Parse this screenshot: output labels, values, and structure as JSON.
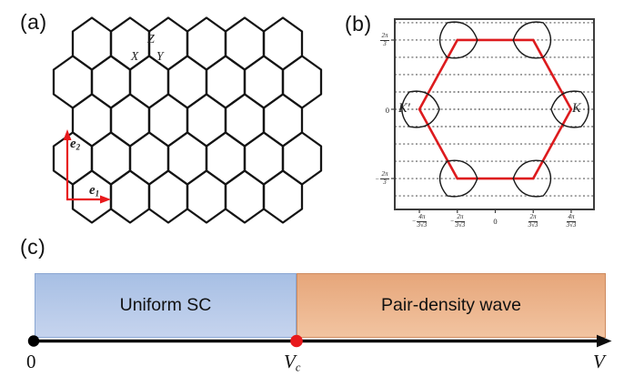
{
  "panels": {
    "a": {
      "label": "(a)",
      "bonds": {
        "x": "X",
        "y": "Y",
        "z": "Z"
      },
      "vectors": {
        "e1": {
          "base": "e",
          "sub": "1"
        },
        "e2": {
          "base": "e",
          "sub": "2"
        }
      }
    },
    "b": {
      "label": "(b)",
      "points": {
        "k": "K",
        "kprime": "K′"
      },
      "yticks": [
        {
          "sign": "",
          "num": "2π",
          "den": "3"
        },
        {
          "zero": "0"
        },
        {
          "sign": "−",
          "num": "2π",
          "den": "3"
        }
      ],
      "xticks": [
        {
          "sign": "−",
          "num": "4π",
          "den": "3√3"
        },
        {
          "sign": "−",
          "num": "2π",
          "den": "3√3"
        },
        {
          "zero": "0"
        },
        {
          "sign": "",
          "num": "2π",
          "den": "3√3"
        },
        {
          "sign": "",
          "num": "4π",
          "den": "3√3"
        }
      ]
    },
    "c": {
      "label": "(c)",
      "regions": [
        {
          "label": "Uniform SC"
        },
        {
          "label": "Pair-density wave"
        }
      ],
      "axis": {
        "origin": "0",
        "critical": {
          "base": "V",
          "sub": "c"
        },
        "end": "V"
      }
    }
  },
  "chart_data": [
    {
      "panel": "a",
      "type": "diagram",
      "subject": "honeycomb lattice with Kitaev bond labels X, Y, Z and lattice vectors e1 (horizontal) and e2 (vertical)",
      "colors": {
        "lattice": "#141414",
        "vectors": "#e8191c"
      }
    },
    {
      "panel": "b",
      "type": "line",
      "subject": "Brillouin zone (red hexagon) with trigonally warped Fermi pockets at K and K′ corners",
      "x_ticks": {
        "labels": [
          "−4π/3√3",
          "−2π/3√3",
          "0",
          "2π/3√3",
          "4π/3√3"
        ],
        "values": [
          -2.4184,
          -1.2092,
          0,
          1.2092,
          2.4184
        ]
      },
      "y_ticks": {
        "labels": [
          "2π/3",
          "0",
          "−2π/3"
        ],
        "values": [
          2.0944,
          0,
          -2.0944
        ]
      },
      "gridlines_y_step": 0.5236,
      "gridlines_count": 11,
      "bz_hexagon_vertices": [
        [
          -1.2092,
          2.0944
        ],
        [
          1.2092,
          2.0944
        ],
        [
          2.4184,
          0
        ],
        [
          1.2092,
          -2.0944
        ],
        [
          -1.2092,
          -2.0944
        ],
        [
          -2.4184,
          0
        ]
      ],
      "pockets": [
        {
          "center": [
            -2.4184,
            0
          ],
          "apex": "east",
          "label": "K′"
        },
        {
          "center": [
            2.4184,
            0
          ],
          "apex": "west",
          "label": "K"
        },
        {
          "center": [
            -1.2092,
            2.0944
          ],
          "apex": "east"
        },
        {
          "center": [
            1.2092,
            2.0944
          ],
          "apex": "west"
        },
        {
          "center": [
            -1.2092,
            -2.0944
          ],
          "apex": "east"
        },
        {
          "center": [
            1.2092,
            -2.0944
          ],
          "apex": "west"
        }
      ],
      "colors": {
        "bz_boundary": "#dd1b1e",
        "pocket": "#1a1a1a",
        "grid": "#2f2f2f",
        "frame": "#3c3c3c"
      }
    },
    {
      "panel": "c",
      "type": "phase-diagram",
      "axis_label": "V",
      "regions": [
        {
          "label": "Uniform SC",
          "from": "0",
          "to": "Vc",
          "color": "#aec3e6"
        },
        {
          "label": "Pair-density wave",
          "from": "Vc",
          "to": "V",
          "color": "#edb38c"
        }
      ],
      "markers": [
        {
          "at": "0",
          "color": "#000000"
        },
        {
          "at": "Vc",
          "color": "#e8191c"
        }
      ]
    }
  ]
}
